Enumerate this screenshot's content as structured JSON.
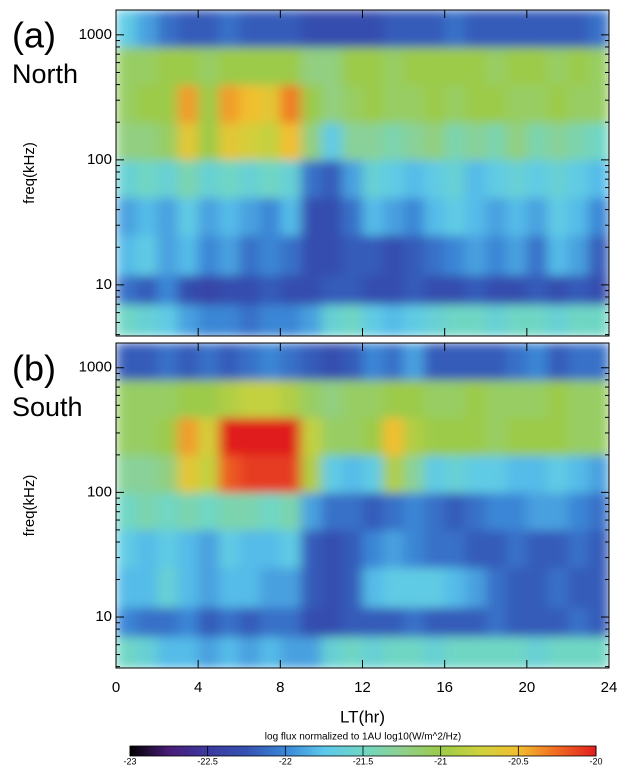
{
  "chart_data": [
    {
      "type": "heatmap",
      "label": "(a)",
      "sublabel": "North",
      "ylabel": "freq(kHz)",
      "yscale": "log",
      "x_edges": [
        0,
        1,
        2,
        3,
        4,
        5,
        6,
        7,
        8,
        9,
        10,
        11,
        12,
        13,
        14,
        15,
        16,
        17,
        18,
        19,
        20,
        21,
        22,
        23,
        24
      ],
      "y_edges": [
        3.9,
        7,
        12,
        25,
        50,
        100,
        200,
        400,
        800,
        1580
      ],
      "xlim": [
        0,
        24
      ],
      "xticks": [
        0,
        4,
        8,
        12,
        16,
        20,
        24
      ],
      "ylim": [
        3.9,
        1580
      ],
      "yticks": [
        10,
        100,
        1000
      ],
      "yminorticks": [
        4,
        5,
        6,
        7,
        8,
        9,
        20,
        30,
        40,
        50,
        60,
        70,
        80,
        90,
        200,
        300,
        400,
        500,
        600,
        700,
        800,
        900
      ],
      "z": [
        [
          -21.5,
          -21.6,
          -21.7,
          -21.9,
          -22.0,
          -22.0,
          -22.1,
          -22.0,
          -22.0,
          -21.9,
          -21.6,
          -21.5,
          -21.7,
          -21.8,
          -21.7,
          -21.6,
          -21.5,
          -21.5,
          -21.6,
          -21.5,
          -21.5,
          -21.6,
          -21.5,
          -21.5
        ],
        [
          -22.1,
          -22.2,
          -22.0,
          -22.3,
          -22.4,
          -22.3,
          -22.3,
          -22.2,
          -22.3,
          -22.3,
          -22.2,
          -22.2,
          -22.3,
          -22.3,
          -22.2,
          -22.3,
          -22.3,
          -22.2,
          -22.3,
          -22.3,
          -22.2,
          -22.3,
          -22.2,
          -22.3
        ],
        [
          -21.8,
          -21.7,
          -21.9,
          -21.8,
          -22.0,
          -21.9,
          -22.1,
          -22.0,
          -22.1,
          -22.3,
          -22.3,
          -22.2,
          -22.2,
          -22.3,
          -22.2,
          -22.1,
          -22.0,
          -21.9,
          -22.0,
          -21.9,
          -22.1,
          -21.8,
          -21.9,
          -22.2
        ],
        [
          -21.9,
          -21.8,
          -21.9,
          -21.7,
          -21.9,
          -21.8,
          -21.9,
          -22.0,
          -21.8,
          -22.3,
          -22.3,
          -22.1,
          -21.8,
          -21.9,
          -22.0,
          -21.8,
          -21.7,
          -21.8,
          -21.9,
          -21.8,
          -21.9,
          -21.7,
          -21.8,
          -22.0
        ],
        [
          -21.6,
          -21.5,
          -21.6,
          -21.4,
          -21.6,
          -21.5,
          -21.6,
          -21.5,
          -21.6,
          -22.1,
          -22.2,
          -21.9,
          -21.6,
          -21.7,
          -21.8,
          -21.7,
          -21.6,
          -21.8,
          -21.7,
          -21.6,
          -21.7,
          -21.6,
          -21.7,
          -21.8
        ],
        [
          -21.2,
          -21.2,
          -21.1,
          -20.6,
          -21.0,
          -20.6,
          -20.7,
          -20.8,
          -20.5,
          -21.2,
          -21.7,
          -21.3,
          -21.3,
          -21.4,
          -21.3,
          -21.2,
          -21.4,
          -21.3,
          -21.4,
          -21.2,
          -21.4,
          -21.3,
          -21.4,
          -21.5
        ],
        [
          -21.1,
          -21.0,
          -21.0,
          -20.4,
          -21.0,
          -20.4,
          -20.5,
          -20.6,
          -20.3,
          -21.0,
          -21.2,
          -21.1,
          -21.0,
          -21.1,
          -21.1,
          -21.0,
          -21.1,
          -21.0,
          -21.0,
          -21.1,
          -21.1,
          -21.0,
          -21.1,
          -21.1
        ],
        [
          -21.1,
          -21.1,
          -21.0,
          -21.0,
          -21.1,
          -21.0,
          -21.0,
          -21.0,
          -21.0,
          -21.2,
          -21.2,
          -21.0,
          -21.0,
          -21.1,
          -21.0,
          -21.0,
          -21.0,
          -21.0,
          -21.1,
          -21.0,
          -21.0,
          -21.1,
          -21.0,
          -21.1
        ],
        [
          -21.7,
          -21.9,
          -22.1,
          -22.2,
          -22.2,
          -22.1,
          -22.2,
          -22.2,
          -22.2,
          -22.3,
          -22.3,
          -22.3,
          -22.3,
          -22.2,
          -22.2,
          -22.2,
          -22.1,
          -22.2,
          -22.2,
          -22.2,
          -22.2,
          -22.2,
          -22.2,
          -22.1
        ]
      ]
    },
    {
      "type": "heatmap",
      "label": "(b)",
      "sublabel": "South",
      "ylabel": "freq(kHz)",
      "xlabel": "LT(hr)",
      "yscale": "log",
      "x_edges": [
        0,
        1,
        2,
        3,
        4,
        5,
        6,
        7,
        8,
        9,
        10,
        11,
        12,
        13,
        14,
        15,
        16,
        17,
        18,
        19,
        20,
        21,
        22,
        23,
        24
      ],
      "y_edges": [
        3.9,
        7,
        12,
        25,
        50,
        100,
        200,
        400,
        800,
        1580
      ],
      "xlim": [
        0,
        24
      ],
      "xticks": [
        0,
        4,
        8,
        12,
        16,
        20,
        24
      ],
      "ylim": [
        3.9,
        1580
      ],
      "yticks": [
        10,
        100,
        1000
      ],
      "yminorticks": [
        4,
        5,
        6,
        7,
        8,
        9,
        20,
        30,
        40,
        50,
        60,
        70,
        80,
        90,
        200,
        300,
        400,
        500,
        600,
        700,
        800,
        900
      ],
      "z": [
        [
          -21.5,
          -21.6,
          -21.8,
          -21.8,
          -21.9,
          -21.8,
          -21.9,
          -21.8,
          -21.9,
          -21.9,
          -21.6,
          -21.5,
          -21.6,
          -21.5,
          -21.5,
          -21.6,
          -21.5,
          -21.5,
          -21.5,
          -21.5,
          -21.6,
          -21.5,
          -21.5,
          -21.5
        ],
        [
          -22.0,
          -22.1,
          -22.1,
          -22.0,
          -22.2,
          -22.1,
          -22.2,
          -22.1,
          -22.1,
          -22.3,
          -22.3,
          -22.2,
          -22.2,
          -22.2,
          -22.1,
          -22.2,
          -22.2,
          -22.2,
          -22.1,
          -22.2,
          -22.2,
          -22.2,
          -22.1,
          -22.2
        ],
        [
          -21.8,
          -21.8,
          -21.6,
          -21.8,
          -21.9,
          -21.8,
          -21.8,
          -21.9,
          -21.9,
          -22.2,
          -22.3,
          -22.2,
          -21.8,
          -21.7,
          -21.7,
          -21.7,
          -21.8,
          -21.9,
          -22.1,
          -22.2,
          -22.2,
          -22.1,
          -22.2,
          -22.2
        ],
        [
          -21.7,
          -21.8,
          -21.7,
          -21.8,
          -21.9,
          -21.7,
          -21.8,
          -21.8,
          -21.7,
          -22.2,
          -22.3,
          -22.2,
          -22.0,
          -21.9,
          -22.0,
          -22.1,
          -22.1,
          -22.2,
          -22.2,
          -22.1,
          -22.2,
          -22.2,
          -22.1,
          -22.2
        ],
        [
          -21.5,
          -21.4,
          -21.5,
          -21.4,
          -21.5,
          -21.4,
          -21.4,
          -21.5,
          -21.4,
          -21.9,
          -22.1,
          -22.1,
          -22.2,
          -22.1,
          -22.0,
          -22.1,
          -22.2,
          -22.1,
          -22.0,
          -22.0,
          -21.9,
          -21.9,
          -22.0,
          -22.1
        ],
        [
          -21.3,
          -21.3,
          -21.2,
          -20.6,
          -20.8,
          -20.2,
          -20.1,
          -20.1,
          -20.1,
          -20.9,
          -21.7,
          -21.8,
          -21.7,
          -20.9,
          -21.3,
          -21.7,
          -21.6,
          -21.7,
          -21.7,
          -21.8,
          -21.8,
          -21.7,
          -21.8,
          -21.9
        ],
        [
          -21.1,
          -21.1,
          -21.0,
          -20.4,
          -20.7,
          -20.0,
          -20.0,
          -20.0,
          -20.0,
          -20.8,
          -21.1,
          -21.1,
          -21.0,
          -20.5,
          -20.9,
          -21.0,
          -21.0,
          -21.0,
          -21.1,
          -21.0,
          -21.0,
          -21.0,
          -21.1,
          -21.1
        ],
        [
          -21.1,
          -21.1,
          -21.1,
          -21.0,
          -21.0,
          -20.9,
          -20.8,
          -20.8,
          -20.9,
          -21.1,
          -21.2,
          -21.1,
          -21.1,
          -21.0,
          -21.0,
          -21.1,
          -21.1,
          -21.0,
          -21.1,
          -21.1,
          -21.1,
          -21.0,
          -21.1,
          -21.1
        ],
        [
          -22.2,
          -22.2,
          -22.1,
          -22.2,
          -22.1,
          -22.2,
          -22.1,
          -22.0,
          -22.1,
          -22.2,
          -22.3,
          -22.2,
          -22.0,
          -22.1,
          -21.9,
          -22.2,
          -22.2,
          -22.2,
          -22.2,
          -22.1,
          -22.0,
          -22.2,
          -22.1,
          -22.1
        ]
      ]
    }
  ],
  "colorbar": {
    "title": "log flux normalized to 1AU log10(W/m^2/Hz)",
    "lim": [
      -23,
      -20
    ],
    "ticks": [
      -23,
      -22.5,
      -22,
      -21.5,
      -21,
      -20.5,
      -20
    ],
    "colorscale": [
      [
        -23,
        "#000000"
      ],
      [
        -22.75,
        "#4a1c78"
      ],
      [
        -22.5,
        "#3b3aa0"
      ],
      [
        -22.25,
        "#3552b2"
      ],
      [
        -22.0,
        "#3a86d6"
      ],
      [
        -21.75,
        "#5cc8ec"
      ],
      [
        -21.5,
        "#6fd6c4"
      ],
      [
        -21.25,
        "#8fd08e"
      ],
      [
        -21.0,
        "#9ccb48"
      ],
      [
        -20.75,
        "#cdd23e"
      ],
      [
        -20.5,
        "#f2be2e"
      ],
      [
        -20.25,
        "#f06a22"
      ],
      [
        -20,
        "#e01e1e"
      ]
    ]
  }
}
